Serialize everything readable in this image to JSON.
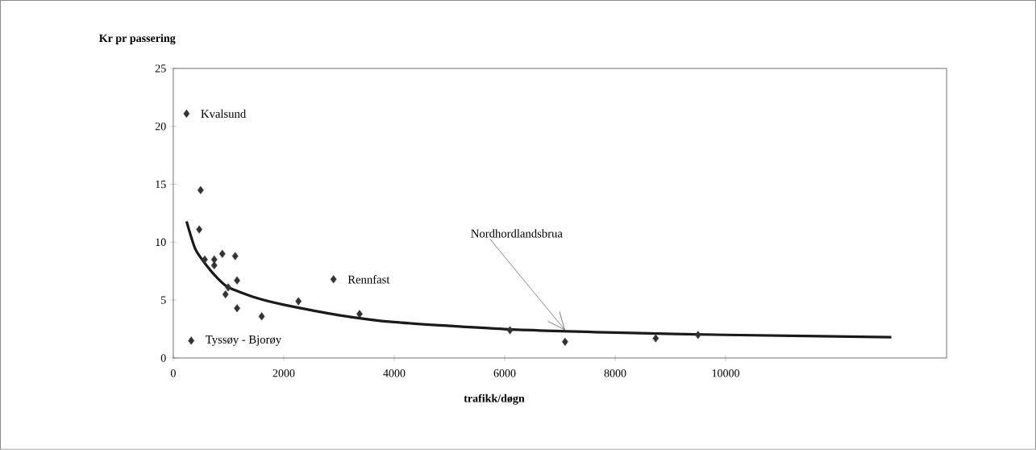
{
  "chart_data": {
    "type": "scatter",
    "xlabel": "trafikk/døgn",
    "ylabel": "Kr pr passering",
    "xlim": [
      0,
      14000
    ],
    "xticks": [
      0,
      2000,
      4000,
      6000,
      8000,
      10000
    ],
    "ylim": [
      0,
      25
    ],
    "yticks": [
      0,
      5,
      10,
      15,
      20,
      25
    ],
    "grid": false,
    "legend": false,
    "marker": "diamond",
    "series": [
      {
        "color": "#333333",
        "x": [
          240,
          495,
          470,
          570,
          742,
          742,
          888,
          1121,
          1155,
          946,
          994,
          1155,
          1601,
          2266,
          2901,
          3372,
          325,
          6096,
          7093,
          8734,
          9500
        ],
        "values": [
          21.1,
          14.5,
          11.1,
          8.5,
          8.5,
          8.0,
          9.0,
          8.8,
          6.7,
          5.5,
          6.1,
          4.3,
          3.6,
          4.9,
          6.8,
          3.8,
          1.5,
          2.4,
          1.4,
          1.7,
          2.0
        ]
      },
      {
        "type": "line",
        "color": "#1a1a1a",
        "marker": "none",
        "x": [
          240,
          400,
          600,
          800,
          1000,
          1500,
          2000,
          3000,
          4000,
          6000,
          8000,
          10000,
          13000
        ],
        "values": [
          11.8,
          9.4,
          8.0,
          6.9,
          6.1,
          5.2,
          4.6,
          3.7,
          3.1,
          2.5,
          2.2,
          2.0,
          1.8
        ]
      }
    ],
    "annotations": [
      {
        "text": "Kvalsund",
        "x": 240,
        "y": 21.1
      },
      {
        "text": "Tyssøy - Bjorøy",
        "x": 325,
        "y": 1.5
      },
      {
        "text": "Rennfast",
        "x": 2901,
        "y": 6.8
      },
      {
        "text": "Nordhordlandsbrua",
        "x": 7093,
        "y": 2.4
      }
    ]
  }
}
